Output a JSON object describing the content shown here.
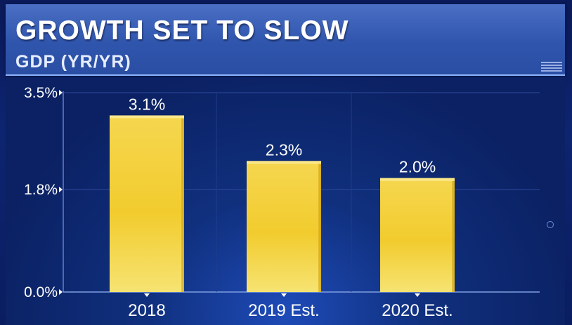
{
  "header": {
    "title": "GROWTH SET TO SLOW",
    "subtitle": "GDP (YR/YR)"
  },
  "chart_data": {
    "type": "bar",
    "title": "GROWTH SET TO SLOW",
    "subtitle": "GDP (YR/YR)",
    "categories": [
      "2018",
      "2019 Est.",
      "2020 Est."
    ],
    "values": [
      3.1,
      2.3,
      2.0
    ],
    "data_labels": [
      "3.1%",
      "2.3%",
      "2.0%"
    ],
    "yticks": [
      0.0,
      1.8,
      3.5
    ],
    "ytick_labels": [
      "0.0%",
      "1.8%",
      "3.5%"
    ],
    "ylim": [
      0,
      3.5
    ],
    "grid": true,
    "colors": {
      "bar": "#f2d13a",
      "bar_top": "#f7dc6a",
      "text": "#ffffff"
    }
  }
}
